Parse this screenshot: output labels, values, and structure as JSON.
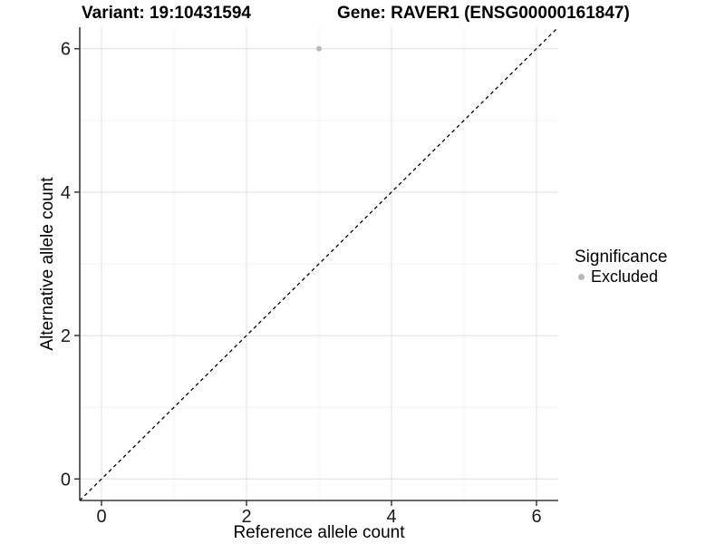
{
  "titles": {
    "variant": "Variant: 19:10431594",
    "gene": "Gene: RAVER1 (ENSG00000161847)"
  },
  "chart_data": {
    "type": "scatter",
    "title_left": "Variant: 19:10431594",
    "title_right": "Gene: RAVER1 (ENSG00000161847)",
    "xlabel": "Reference allele count",
    "ylabel": "Alternative allele count",
    "xlim": [
      -0.3,
      6.3
    ],
    "ylim": [
      -0.3,
      6.3
    ],
    "xticks": [
      0,
      2,
      4,
      6
    ],
    "yticks": [
      0,
      2,
      4,
      6
    ],
    "xminor": [
      1,
      3,
      5
    ],
    "yminor": [
      1,
      3,
      5
    ],
    "grid": true,
    "legend_position": "right",
    "legend": {
      "title": "Significance",
      "items": [
        {
          "label": "Excluded",
          "color": "#b9b9b9",
          "marker": "circle-icon"
        }
      ]
    },
    "series": [
      {
        "name": "Excluded",
        "color": "#b9b9b9",
        "points": [
          {
            "x": 3,
            "y": 6
          }
        ]
      }
    ],
    "identity_line": {
      "style": "dashed",
      "color": "#000000",
      "from": -0.3,
      "to": 6.3
    }
  },
  "style": {
    "axis_color": "#3a3a3a",
    "tick_label_color": "#1a1a1a",
    "grid_major_color": "#e4e4e4",
    "grid_minor_color": "#f0f0f0",
    "background": "#ffffff"
  }
}
